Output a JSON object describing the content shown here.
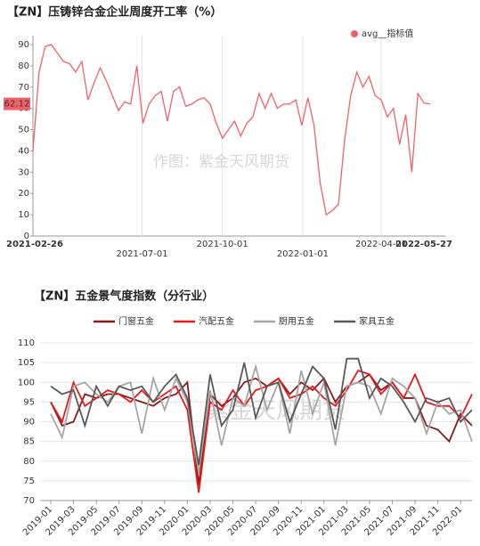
{
  "chart_data": [
    {
      "type": "line",
      "title": "【ZN】压铸锌合金企业周度开工率（%）",
      "watermark": "作图：紫金天风期货",
      "x": [
        "2021-02-26",
        "2021-03-05",
        "2021-03-12",
        "2021-03-19",
        "2021-03-26",
        "2021-04-02",
        "2021-04-09",
        "2021-04-16",
        "2021-04-23",
        "2021-04-30",
        "2021-05-07",
        "2021-05-14",
        "2021-05-21",
        "2021-05-28",
        "2021-06-04",
        "2021-06-11",
        "2021-06-18",
        "2021-06-25",
        "2021-07-02",
        "2021-07-09",
        "2021-07-16",
        "2021-07-23",
        "2021-07-30",
        "2021-08-06",
        "2021-08-13",
        "2021-08-20",
        "2021-08-27",
        "2021-09-03",
        "2021-09-10",
        "2021-09-17",
        "2021-09-24",
        "2021-10-01",
        "2021-10-08",
        "2021-10-15",
        "2021-10-22",
        "2021-10-29",
        "2021-11-05",
        "2021-11-12",
        "2021-11-19",
        "2021-11-26",
        "2021-12-03",
        "2021-12-10",
        "2021-12-17",
        "2021-12-24",
        "2021-12-31",
        "2022-01-07",
        "2022-01-14",
        "2022-01-21",
        "2022-01-28",
        "2022-02-04",
        "2022-02-11",
        "2022-02-18",
        "2022-02-25",
        "2022-03-04",
        "2022-03-11",
        "2022-03-18",
        "2022-03-25",
        "2022-04-01",
        "2022-04-08",
        "2022-04-15",
        "2022-04-22",
        "2022-04-29",
        "2022-05-06",
        "2022-05-13",
        "2022-05-20",
        "2022-05-27"
      ],
      "series": [
        {
          "name": "avg__指标值",
          "color": "#f0616a",
          "values": [
            40,
            77,
            89,
            90,
            86,
            82,
            81,
            77,
            82,
            64,
            72,
            79,
            73,
            66,
            59,
            63,
            62,
            80,
            53,
            62,
            66,
            68,
            54,
            68,
            70,
            61,
            62,
            64,
            65,
            62,
            53,
            46,
            50,
            54,
            47,
            53,
            56,
            67,
            60,
            67,
            60,
            62,
            62,
            64,
            52,
            65,
            52,
            25,
            10,
            12,
            15,
            45,
            66,
            77,
            70,
            75,
            66,
            64,
            56,
            60,
            43,
            57,
            30,
            67,
            62.5,
            62.12
          ]
        }
      ],
      "xlim": [
        "2021-02-26",
        "2022-05-27"
      ],
      "xticks": [
        "2021-02-26",
        "2021-07-01",
        "2021-10-01",
        "2022-01-01",
        "2022-04-01",
        "2022-05-27"
      ],
      "ylim": [
        0,
        90
      ],
      "yticks": [
        0,
        10,
        20,
        30,
        40,
        50,
        60,
        70,
        80,
        90
      ],
      "legend": "top-right"
    },
    {
      "type": "line",
      "title": "【ZN】五金景气度指数（分行业）",
      "watermark": "紫金天风期货",
      "categories": [
        "2019-01",
        null,
        "2019-03",
        null,
        "2019-05",
        null,
        "2019-07",
        null,
        "2019-09",
        null,
        "2019-11",
        null,
        "2020-01",
        null,
        "2020-03",
        null,
        "2020-05",
        null,
        "2020-07",
        null,
        "2020-09",
        null,
        "2020-11",
        null,
        "2021-01",
        null,
        "2021-03",
        null,
        "2021-05",
        null,
        "2021-07",
        null,
        "2021-09",
        null,
        "2021-11",
        null,
        "2022-01",
        null
      ],
      "series": [
        {
          "name": "门窗五金",
          "color": "#8b1a1a",
          "values": [
            95,
            89,
            90,
            97,
            96,
            97,
            97,
            96,
            95,
            94,
            96,
            97,
            100,
            74,
            97,
            94,
            96,
            100,
            101,
            99,
            101,
            97,
            100,
            98,
            101,
            95,
            99,
            100,
            102,
            98,
            100,
            96,
            96,
            89,
            88,
            85,
            92,
            89
          ]
        },
        {
          "name": "汽配五金",
          "color": "#e31a1c",
          "values": [
            95,
            90,
            100,
            94,
            96,
            98,
            97,
            95,
            98,
            95,
            97,
            99,
            93,
            72,
            95,
            93,
            98,
            94,
            98,
            99,
            101,
            96,
            97,
            99,
            96,
            94,
            98,
            103,
            102,
            97,
            100,
            96,
            102,
            95,
            94,
            94,
            91,
            97
          ]
        },
        {
          "name": "厨用五金",
          "color": "#a6a6a6",
          "values": [
            92,
            86,
            99,
            100,
            97,
            95,
            99,
            100,
            87,
            101,
            93,
            101,
            95,
            77,
            98,
            84,
            96,
            94,
            104,
            93,
            100,
            87,
            103,
            92,
            100,
            84,
            99,
            100,
            99,
            92,
            101,
            99,
            96,
            87,
            95,
            92,
            93,
            85
          ]
        },
        {
          "name": "家具五金",
          "color": "#595959",
          "values": [
            99,
            97,
            98,
            89,
            99,
            94,
            99,
            98,
            99,
            95,
            99,
            102,
            96,
            79,
            102,
            89,
            93,
            105,
            91,
            99,
            100,
            90,
            97,
            104,
            101,
            88,
            106,
            106,
            96,
            101,
            99,
            95,
            90,
            96,
            95,
            96,
            90,
            93
          ]
        }
      ],
      "ylim": [
        70,
        110
      ],
      "yticks": [
        70,
        75,
        80,
        85,
        90,
        95,
        100,
        105,
        110
      ],
      "grid": true,
      "legend": "top"
    }
  ]
}
